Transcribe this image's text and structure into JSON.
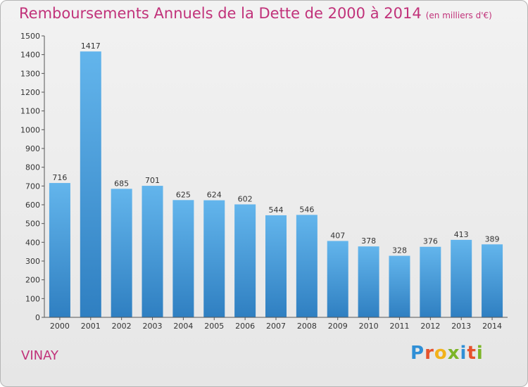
{
  "chart_data": {
    "type": "bar",
    "title": "Remboursements Annuels de la Dette de 2000 à 2014",
    "unit": "(en milliers d'€)",
    "categories": [
      "2000",
      "2001",
      "2002",
      "2003",
      "2004",
      "2005",
      "2006",
      "2007",
      "2008",
      "2009",
      "2010",
      "2011",
      "2012",
      "2013",
      "2014"
    ],
    "values": [
      716,
      1417,
      685,
      701,
      625,
      624,
      602,
      544,
      546,
      407,
      378,
      328,
      376,
      413,
      389
    ],
    "ylim": [
      0,
      1500
    ],
    "yticks": [
      0,
      100,
      200,
      300,
      400,
      500,
      600,
      700,
      800,
      900,
      1000,
      1100,
      1200,
      1300,
      1400,
      1500
    ],
    "xlabel": "",
    "ylabel": "",
    "grid": false,
    "colors": {
      "bar_top": "#63b5ec",
      "bar_bottom": "#2f7fc1",
      "title": "#c1327a"
    }
  },
  "commune": "VINAY",
  "logo": {
    "letters": [
      {
        "ch": "P",
        "color": "#2f8fd6"
      },
      {
        "ch": "r",
        "color": "#e6522c"
      },
      {
        "ch": "o",
        "color": "#f2b21b"
      },
      {
        "ch": "x",
        "color": "#7cb527"
      },
      {
        "ch": "i",
        "color": "#2f8fd6"
      },
      {
        "ch": "t",
        "color": "#e6522c"
      },
      {
        "ch": "i",
        "color": "#7cb527"
      }
    ]
  }
}
